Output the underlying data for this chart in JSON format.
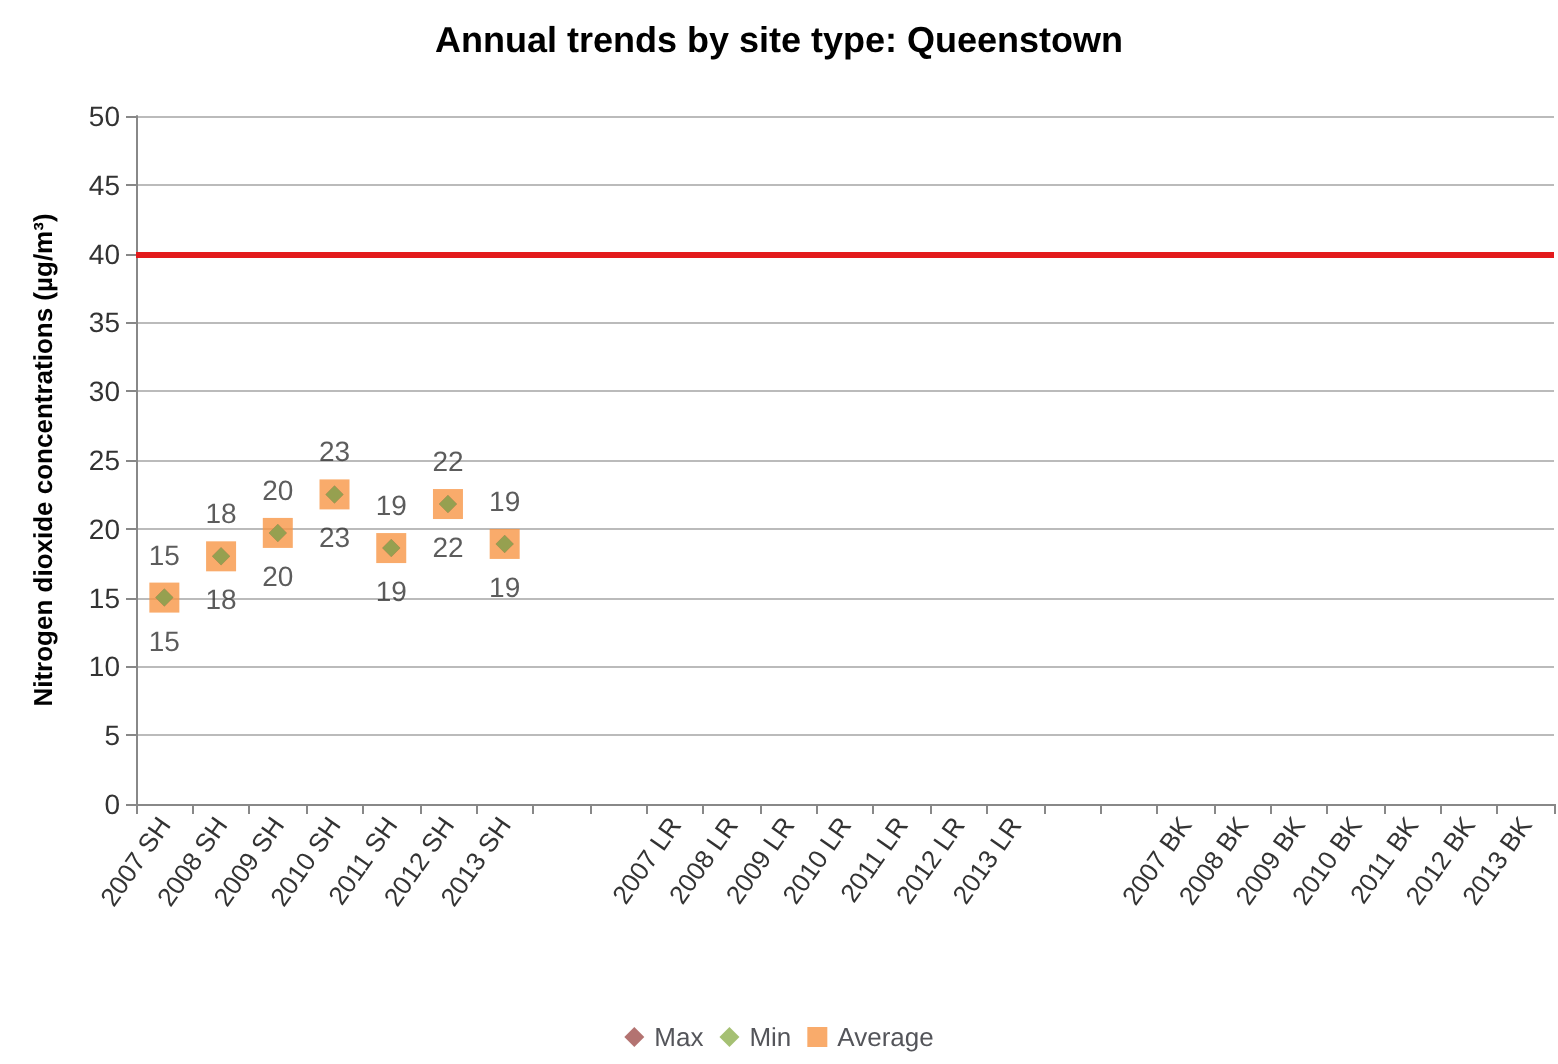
{
  "chart_data": {
    "type": "scatter",
    "title": "Annual trends by site type: Queenstown",
    "ylabel": "Nitrogen dioxide concentrations (µg/m³)",
    "categories": [
      "2007 SH",
      "2008 SH",
      "2009 SH",
      "2010 SH",
      "2011 SH",
      "2012 SH",
      "2013 SH",
      null,
      null,
      "2007 LR",
      "2008 LR",
      "2009 LR",
      "2010 LR",
      "2011 LR",
      "2012 LR",
      "2013 LR",
      null,
      null,
      "2007 BK",
      "2008 BK",
      "2009 BK",
      "2010 BK",
      "2011 BK",
      "2012 BK",
      "2013 BK"
    ],
    "series": [
      {
        "name": "Average",
        "color": "#f79646",
        "marker": "square",
        "values": [
          15.0,
          18.0,
          19.7,
          22.5,
          18.6,
          21.8,
          18.9,
          null,
          null,
          null,
          null,
          null,
          null,
          null,
          null,
          null,
          null,
          null,
          null,
          null,
          null,
          null,
          null,
          null,
          null
        ]
      },
      {
        "name": "Max",
        "color": "#a0504e",
        "marker": "diamond",
        "values": [
          15.0,
          18.0,
          19.7,
          22.5,
          18.6,
          21.8,
          18.9,
          null,
          null,
          null,
          null,
          null,
          null,
          null,
          null,
          null,
          null,
          null,
          null,
          null,
          null,
          null,
          null,
          null,
          null
        ],
        "value_labels": [
          "15",
          "18",
          "20",
          "23",
          "19",
          "22",
          "19",
          null,
          null,
          null,
          null,
          null,
          null,
          null,
          null,
          null,
          null,
          null,
          null,
          null,
          null,
          null,
          null,
          null,
          null
        ]
      },
      {
        "name": "Min",
        "color": "#8fb050",
        "marker": "diamond",
        "values": [
          15.0,
          18.0,
          19.7,
          22.5,
          18.6,
          21.8,
          18.9,
          null,
          null,
          null,
          null,
          null,
          null,
          null,
          null,
          null,
          null,
          null,
          null,
          null,
          null,
          null,
          null,
          null,
          null
        ],
        "value_labels": [
          "15",
          "18",
          "20",
          "23",
          "19",
          "22",
          "19",
          null,
          null,
          null,
          null,
          null,
          null,
          null,
          null,
          null,
          null,
          null,
          null,
          null,
          null,
          null,
          null,
          null,
          null
        ]
      }
    ],
    "ylim": [
      0,
      50
    ],
    "yticks": [
      0,
      5,
      10,
      15,
      20,
      25,
      30,
      35,
      40,
      45,
      50
    ],
    "grid": "y",
    "legend": "bottom",
    "ref_lines": [
      {
        "axis": "y",
        "value": 40,
        "color": "#e31a1c"
      }
    ]
  }
}
